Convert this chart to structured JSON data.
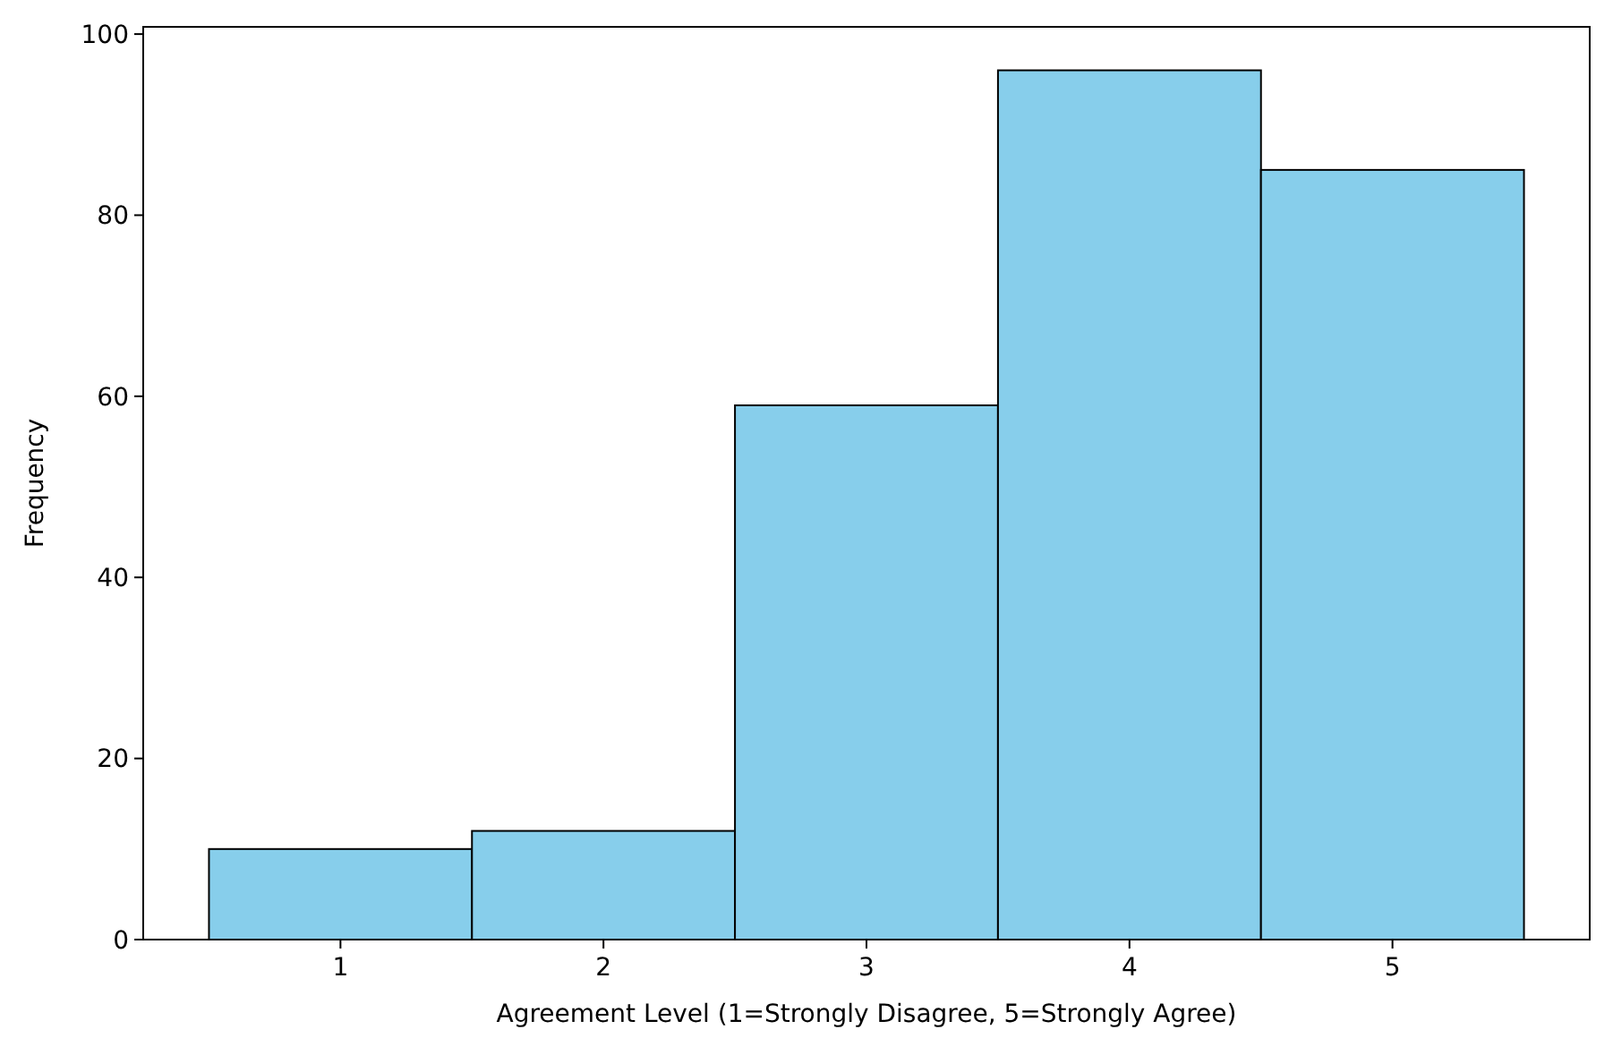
{
  "chart_data": {
    "type": "histogram",
    "xlabel": "Agreement Level (1=Strongly Disagree, 5=Strongly Agree)",
    "ylabel": "Frequency",
    "bins": [
      0.5,
      1.5,
      2.5,
      3.5,
      4.5,
      5.5
    ],
    "values": [
      10,
      12,
      59,
      96,
      85
    ],
    "color": "#87ceeb",
    "xlim": [
      0.25,
      5.75
    ],
    "xticks": [
      1,
      2,
      3,
      4,
      5
    ],
    "ylim": [
      0,
      100.8
    ],
    "yticks": [
      0,
      20,
      40,
      60,
      80,
      100
    ],
    "grid": false
  }
}
